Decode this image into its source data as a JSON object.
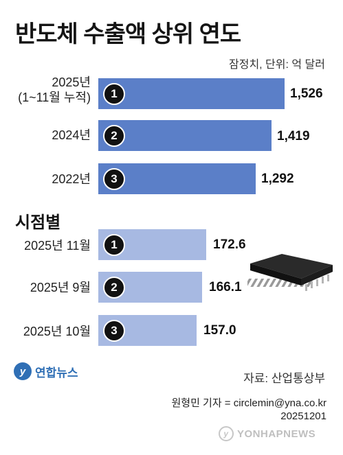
{
  "title": "반도체 수출액 상위 연도",
  "unit_note": "잠정치, 단위: 억 달러",
  "section_label": "시점별",
  "chart_data": [
    {
      "type": "bar",
      "orientation": "horizontal",
      "title": "반도체 수출액 상위 연도",
      "unit": "억 달러",
      "categories": [
        "2025년 (1~11월 누적)",
        "2024년",
        "2022년"
      ],
      "values": [
        1526,
        1419,
        1292
      ],
      "ranks": [
        "1",
        "2",
        "3"
      ],
      "value_labels": [
        "1,526",
        "1,419",
        "1,292"
      ],
      "bar_color": "#5b7fc8"
    },
    {
      "type": "bar",
      "orientation": "horizontal",
      "title": "시점별",
      "unit": "억 달러",
      "categories": [
        "2025년 11월",
        "2025년 9월",
        "2025년 10월"
      ],
      "values": [
        172.6,
        166.1,
        157.0
      ],
      "ranks": [
        "1",
        "2",
        "3"
      ],
      "value_labels": [
        "172.6",
        "166.1",
        "157.0"
      ],
      "bar_color": "#a7b9e2"
    }
  ],
  "annual_rows": [
    {
      "label_line1": "2025년",
      "label_line2": "(1~11월 누적)",
      "rank": "1",
      "value_label": "1,526"
    },
    {
      "label_line1": "2024년",
      "label_line2": "",
      "rank": "2",
      "value_label": "1,419"
    },
    {
      "label_line1": "2022년",
      "label_line2": "",
      "rank": "3",
      "value_label": "1,292"
    }
  ],
  "monthly_rows": [
    {
      "label": "2025년 11월",
      "rank": "1",
      "value_label": "172.6"
    },
    {
      "label": "2025년 9월",
      "rank": "2",
      "value_label": "166.1"
    },
    {
      "label": "2025년 10월",
      "rank": "3",
      "value_label": "157.0"
    }
  ],
  "source": "자료: 산업통상부",
  "logo_text": "연합뉴스",
  "credit_line1": "원형민 기자 = circlemin@yna.co.kr",
  "credit_line2": "20251201",
  "watermark_text": "YONHAPNEWS",
  "icons": {
    "chip": "semiconductor-chip-icon",
    "logo": "yonhap-logo-icon"
  }
}
